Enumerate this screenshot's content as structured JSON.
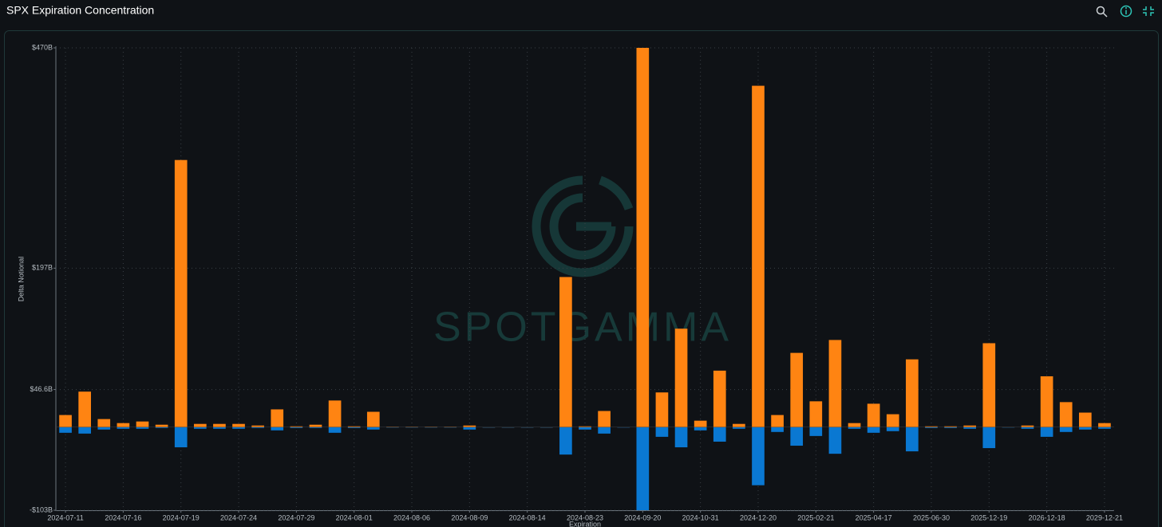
{
  "chart_data": {
    "type": "stacked-bar",
    "title": "SPX Expiration Concentration",
    "watermark": "SPOTGAMMA",
    "y_label": "Delta Notional",
    "x_label": "Expiration",
    "categories": [
      "2024-07-11",
      null,
      null,
      "2024-07-16",
      null,
      null,
      "2024-07-19",
      null,
      null,
      "2024-07-24",
      null,
      null,
      "2024-07-29",
      null,
      null,
      "2024-08-01",
      null,
      null,
      "2024-08-06",
      null,
      null,
      "2024-08-09",
      null,
      null,
      "2024-08-14",
      null,
      null,
      "2024-08-23",
      null,
      null,
      "2024-09-20",
      null,
      null,
      "2024-10-31",
      null,
      null,
      "2024-12-20",
      null,
      null,
      "2025-02-21",
      null,
      null,
      "2025-04-17",
      null,
      null,
      "2025-06-30",
      null,
      null,
      "2025-12-19",
      null,
      null,
      "2026-12-18",
      null,
      null,
      "2029-12-21"
    ],
    "series": [
      {
        "color": "#ff8412",
        "values": [
          15,
          44,
          10,
          5,
          7,
          3,
          331,
          4,
          4,
          4,
          2,
          22,
          1,
          3,
          33,
          1,
          19,
          0.5,
          0.5,
          0.5,
          0.5,
          2,
          0.1,
          0.1,
          0.1,
          0.1,
          186,
          1,
          20,
          0.2,
          470,
          43,
          122,
          8,
          70,
          4,
          423,
          15,
          92,
          32,
          108,
          5,
          29,
          16,
          84,
          1,
          1,
          2,
          104,
          0.3,
          2,
          63,
          31,
          18,
          5
        ]
      },
      {
        "color": "#0a78d2",
        "values": [
          -7,
          -8,
          -3,
          -2,
          -2,
          -1,
          -25,
          -2,
          -2,
          -2,
          -1,
          -4,
          -1,
          -1,
          -7,
          -1,
          -3,
          -0.5,
          -0.5,
          -0.5,
          -0.5,
          -3,
          -0.1,
          -0.1,
          -0.1,
          -0.1,
          -34,
          -3,
          -8,
          -0.2,
          -103,
          -12,
          -25,
          -4,
          -18,
          -2,
          -72,
          -6,
          -23,
          -11,
          -33,
          -2,
          -7,
          -5,
          -30,
          -1,
          -1,
          -2,
          -26,
          -0.3,
          -2,
          -12,
          -6,
          -3,
          -2
        ]
      }
    ],
    "ylim": [
      -103,
      470
    ],
    "yticks": [
      {
        "value": -103,
        "label": "-$103B"
      },
      {
        "value": 46.6,
        "label": "$46.6B"
      },
      {
        "value": 197,
        "label": "$197B"
      },
      {
        "value": 470,
        "label": "$470B"
      }
    ],
    "grid": true
  }
}
